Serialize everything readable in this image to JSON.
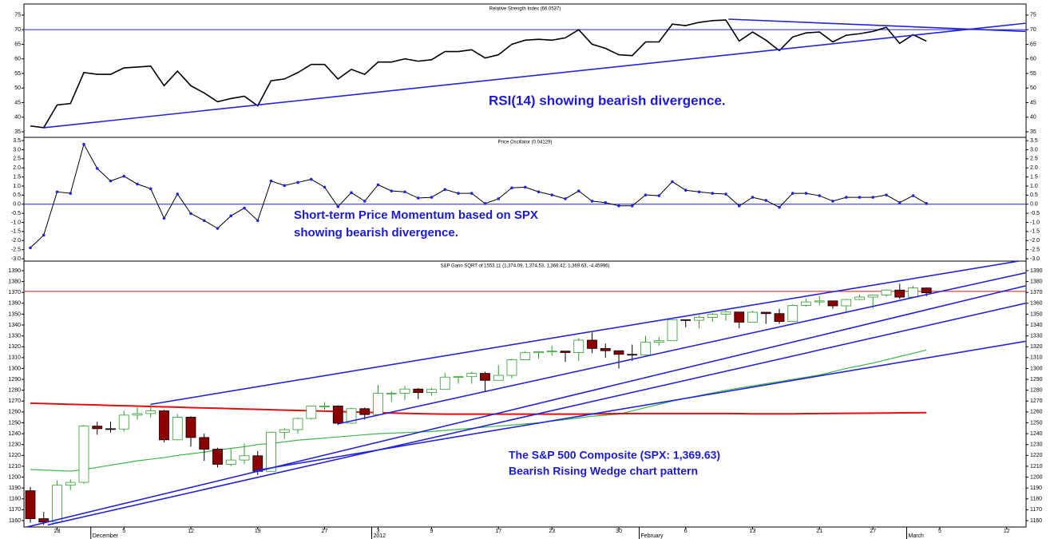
{
  "chart_data": [
    {
      "type": "line",
      "title": "Relative Strength Index (66.0537)",
      "annotations": [
        "RSI(14) showing bearish divergence."
      ],
      "ylim": [
        33.1,
        78.8
      ],
      "yticks": [
        35,
        40,
        45,
        50,
        55,
        60,
        65,
        70,
        75
      ],
      "hline": {
        "value": 70,
        "color": "#2323d8"
      },
      "trendlines": [
        {
          "color": "#2323d8",
          "points": [
            [
              1,
              36.4
            ],
            [
              74.4,
              72.2
            ]
          ]
        },
        {
          "color": "#2323d8",
          "points": [
            [
              52.2,
              73.6
            ],
            [
              74.4,
              69.4
            ]
          ]
        }
      ],
      "series": [
        {
          "color": "#000000",
          "values": [
            37.0,
            36.4,
            44.2,
            44.7,
            55.3,
            54.7,
            54.7,
            56.9,
            57.2,
            57.5,
            50.8,
            55.8,
            50.8,
            48.3,
            45.3,
            46.4,
            47.2,
            43.9,
            52.5,
            53.1,
            55.3,
            58.1,
            58.1,
            53.1,
            56.4,
            54.7,
            58.9,
            58.9,
            60.0,
            59.2,
            59.7,
            62.5,
            62.5,
            63.1,
            60.3,
            61.4,
            65.0,
            66.4,
            66.7,
            66.4,
            67.2,
            70.0,
            65.0,
            63.6,
            61.4,
            61.1,
            65.8,
            65.8,
            71.9,
            71.4,
            72.5,
            73.1,
            73.3,
            66.1,
            69.2,
            66.4,
            62.8,
            67.5,
            68.9,
            69.2,
            65.8,
            68.1,
            68.6,
            69.4,
            70.8,
            65.3,
            68.3,
            66.05,
            null,
            null,
            null,
            null,
            null,
            null,
            null
          ]
        }
      ]
    },
    {
      "type": "line",
      "title": "Price Oscillator (0.04129)",
      "annotations": [
        "Short-term Price Momentum based on SPX",
        "showing bearish divergence."
      ],
      "ylim": [
        -3.13,
        3.68
      ],
      "yticks": [
        3.5,
        {
          "value": 3,
          "label": "3.0"
        },
        2.5,
        {
          "value": 2,
          "label": "2.0"
        },
        1.5,
        {
          "value": 1,
          "label": "1.0"
        },
        0.5,
        {
          "value": 0,
          "label": "0.0"
        },
        -0.5,
        {
          "value": -1,
          "label": "-1.0"
        },
        -1.5,
        {
          "value": -2,
          "label": "-2.0"
        },
        -2.5,
        {
          "value": -3,
          "label": "-3.0"
        }
      ],
      "hline": {
        "value": 0,
        "color": "#2323d8"
      },
      "markers": true,
      "marker_color": "#2323d8",
      "series": [
        {
          "color": "#000000",
          "values": [
            -2.4,
            -1.7,
            0.68,
            0.6,
            3.3,
            1.97,
            1.28,
            1.54,
            1.11,
            0.85,
            -0.77,
            0.56,
            -0.51,
            -0.9,
            -1.33,
            -0.64,
            -0.21,
            -0.9,
            1.28,
            1.03,
            1.2,
            1.37,
            0.94,
            -0.13,
            0.64,
            0.17,
            1.07,
            0.73,
            0.68,
            0.34,
            0.38,
            0.81,
            0.6,
            0.6,
            0.04,
            0.3,
            0.9,
            0.94,
            0.68,
            0.51,
            0.3,
            0.73,
            0.17,
            0.09,
            -0.09,
            -0.09,
            0.51,
            0.47,
            1.24,
            0.77,
            0.68,
            0.6,
            0.56,
            -0.09,
            0.38,
            0.21,
            -0.17,
            0.6,
            0.6,
            0.47,
            0.17,
            0.38,
            0.38,
            0.38,
            0.51,
            0.09,
            0.47,
            0.04,
            null,
            null,
            null,
            null,
            null,
            null,
            null
          ]
        }
      ]
    },
    {
      "type": "candlestick",
      "title": "S&P Gann SQRT of 1553.11 (1,374.09, 1,374.53, 1,366.42, 1,369.63, -4.45996)",
      "annotations": [
        "The S&P 500 Composite (SPX: 1,369.63)",
        "Bearish Rising Wedge chart pattern"
      ],
      "ylim": [
        1154.1,
        1398.8
      ],
      "yticks": [
        1160,
        1170,
        1180,
        1190,
        1200,
        1210,
        1220,
        1230,
        1240,
        1250,
        1260,
        1270,
        1280,
        1290,
        1300,
        1310,
        1320,
        1330,
        1340,
        1350,
        1360,
        1370,
        1380,
        1390
      ],
      "categories": [
        null,
        null,
        "28",
        null,
        null,
        null,
        null,
        "5",
        null,
        null,
        null,
        null,
        "12",
        null,
        null,
        null,
        null,
        "19",
        null,
        null,
        null,
        null,
        "27",
        null,
        null,
        null,
        "3",
        null,
        null,
        null,
        "9",
        null,
        null,
        null,
        null,
        "17",
        null,
        null,
        null,
        "23",
        null,
        null,
        null,
        null,
        "30",
        null,
        null,
        null,
        null,
        "6",
        null,
        null,
        null,
        null,
        "13",
        null,
        null,
        null,
        null,
        "21",
        null,
        null,
        null,
        "27",
        null,
        null,
        null,
        null,
        "5",
        null,
        null,
        null,
        null,
        "12",
        null
      ],
      "periods": [
        {
          "value": 5,
          "label": "December"
        },
        {
          "value": 26,
          "label": "2012"
        },
        {
          "value": 46,
          "label": "February"
        },
        {
          "value": 66,
          "label": "March"
        }
      ],
      "up_color": "#2e9e2e",
      "down_color": "#8b0000",
      "open": [
        1187.48,
        1161.79,
        1158.67,
        1192.55,
        1195.19,
        1246.96,
        1244.58,
        1244.28,
        1257.08,
        1258.47,
        1261.01,
        1234.35,
        1255.19,
        1236.47,
        1225.73,
        1211.82,
        1215.75,
        1219.66,
        1205.35,
        1241.3,
        1243.72,
        1254.0,
        1265.33,
        1265.43,
        1249.64,
        1263.02,
        1257.6,
        1277.06,
        1277.3,
        1281.06,
        1277.81,
        1280.7,
        1292.08,
        1292.48,
        1295.5,
        1289.09,
        1293.67,
        1308.04,
        1314.5,
        1315.38,
        1316.0,
        1314.65,
        1326.06,
        1318.43,
        1316.33,
        1313.01,
        1312.41,
        1324.09,
        1325.54,
        1344.9,
        1344.33,
        1347.05,
        1349.96,
        1351.95,
        1342.64,
        1351.77,
        1350.5,
        1343.23,
        1358.04,
        1361.23,
        1362.21,
        1357.66,
        1363.46,
        1365.74,
        1367.59,
        1372.18,
        1365.68,
        1374.09,
        null,
        null,
        null,
        null,
        null,
        null,
        null
      ],
      "high": [
        1191,
        1168,
        1197,
        1198,
        1248,
        1251,
        1251,
        1261,
        1266,
        1267,
        1262,
        1258,
        1256,
        1240,
        1227,
        1226,
        1231,
        1224,
        1242,
        1245,
        1255,
        1266,
        1269,
        1266,
        1264,
        1264,
        1285,
        1279,
        1284,
        1282,
        1282,
        1296,
        1293,
        1297,
        1297,
        1303,
        1309,
        1316,
        1316,
        1321,
        1316,
        1328,
        1333,
        1323,
        1316,
        1322,
        1330,
        1329,
        1345,
        1345,
        1349,
        1351,
        1354,
        1352,
        1353,
        1351,
        1355,
        1359,
        1364,
        1367,
        1362,
        1364,
        1368,
        1368,
        1373,
        1378,
        1376,
        1374.53,
        null,
        null,
        null,
        null,
        null,
        null,
        null
      ],
      "low": [
        1158,
        1156,
        1158,
        1188,
        1194,
        1239,
        1241,
        1242,
        1253,
        1255,
        1232,
        1234,
        1228,
        1215,
        1209,
        1210,
        1212,
        1202,
        1205,
        1235,
        1240,
        1253,
        1262,
        1248,
        1249,
        1253,
        1258,
        1269,
        1271,
        1272,
        1275,
        1281,
        1286,
        1286,
        1279,
        1290,
        1291,
        1308,
        1309,
        1312,
        1306,
        1307,
        1314,
        1310,
        1300,
        1307,
        1312,
        1321,
        1326,
        1338,
        1337,
        1343,
        1344,
        1337,
        1343,
        1341,
        1341,
        1343,
        1357,
        1358,
        1355,
        1352,
        1363,
        1355,
        1366,
        1364,
        1365,
        1366.42,
        null,
        null,
        null,
        null,
        null,
        null,
        null
      ],
      "close": [
        1161.79,
        1158.67,
        1192.55,
        1195.19,
        1246.96,
        1244.58,
        1244.28,
        1257.08,
        1258.47,
        1261.01,
        1234.35,
        1255.19,
        1236.47,
        1225.73,
        1211.82,
        1215.75,
        1219.66,
        1205.35,
        1241.3,
        1243.72,
        1254.0,
        1265.33,
        1265.43,
        1249.64,
        1263.02,
        1257.6,
        1277.06,
        1277.3,
        1281.06,
        1277.81,
        1280.7,
        1292.08,
        1292.48,
        1295.5,
        1289.09,
        1293.67,
        1308.04,
        1314.5,
        1315.38,
        1316.0,
        1314.65,
        1326.06,
        1318.43,
        1316.33,
        1313.01,
        1312.41,
        1324.09,
        1325.54,
        1344.9,
        1344.33,
        1347.05,
        1349.96,
        1351.95,
        1342.64,
        1351.77,
        1350.5,
        1343.23,
        1358.04,
        1361.23,
        1362.21,
        1357.66,
        1363.46,
        1365.74,
        1367.59,
        1372.18,
        1365.68,
        1374.09,
        1369.63,
        null,
        null,
        null,
        null,
        null,
        null,
        null
      ],
      "series": [
        {
          "color": "#3cb54a",
          "values": [
            1207,
            1206.5,
            1206,
            1205.5,
            1207,
            1209,
            1211,
            1213,
            1215,
            1216.5,
            1218,
            1220,
            1221.5,
            1223,
            1225,
            1226.5,
            1228,
            1230,
            1231,
            1232.5,
            1234,
            1235,
            1236,
            1237,
            1238,
            1239,
            1240,
            1240.5,
            1241,
            1241.5,
            1242,
            1243,
            1244,
            1245,
            1246,
            1247,
            1248,
            1249,
            1250,
            1251.5,
            1253,
            1254.5,
            1256,
            1257,
            1258,
            1261,
            1264,
            1267,
            1270,
            1272.5,
            1275,
            1277.5,
            1280,
            1282,
            1284,
            1286,
            1288,
            1290,
            1292,
            1294,
            1297,
            1300,
            1302.5,
            1305,
            1308,
            1311,
            1314,
            1317,
            null,
            null,
            null,
            null,
            null,
            null,
            null
          ]
        },
        {
          "color": "#e01010",
          "values": [
            1268,
            1267.7,
            1267.4,
            1267,
            1266.7,
            1266.4,
            1266,
            1265.7,
            1265.4,
            1265,
            1264.7,
            1264.4,
            1264,
            1263.7,
            1263.4,
            1263,
            1262.7,
            1262.4,
            1262,
            1261.7,
            1261.4,
            1261,
            1260.7,
            1260.4,
            1260,
            1259.7,
            1259.4,
            1259,
            1258.7,
            1258.4,
            1258.2,
            1258,
            1258,
            1258,
            1258,
            1258,
            1258,
            1258,
            1258,
            1258,
            1258,
            1258,
            1258.2,
            1258.3,
            1258.4,
            1258.5,
            1258.5,
            1258.5,
            1258.5,
            1258.5,
            1258.5,
            1258.5,
            1258.5,
            1258.4,
            1258.3,
            1258.3,
            1258.3,
            1258.3,
            1258.4,
            1258.5,
            1258.6,
            1258.7,
            1258.8,
            1258.9,
            1259,
            1259.2,
            1259.3,
            1259.4,
            null,
            null,
            null,
            null,
            null,
            null,
            null
          ]
        }
      ],
      "hline": {
        "value": 1371,
        "color": "#e01010"
      },
      "trendlines": [
        {
          "color": "#2323d8",
          "points": [
            [
              9,
              1267
            ],
            [
              74,
              1399
            ]
          ]
        },
        {
          "color": "#2323d8",
          "points": [
            [
              23,
              1249
            ],
            [
              74.4,
              1388
            ]
          ]
        },
        {
          "color": "#2323d8",
          "points": [
            [
              -0.3,
              1154
            ],
            [
              74.4,
              1376
            ]
          ]
        },
        {
          "color": "#2323d8",
          "points": [
            [
              1.3,
              1156
            ],
            [
              74.4,
              1360
            ]
          ]
        },
        {
          "color": "#2323d8",
          "points": [
            [
              16.8,
              1206
            ],
            [
              74.4,
              1325
            ]
          ]
        }
      ]
    }
  ]
}
